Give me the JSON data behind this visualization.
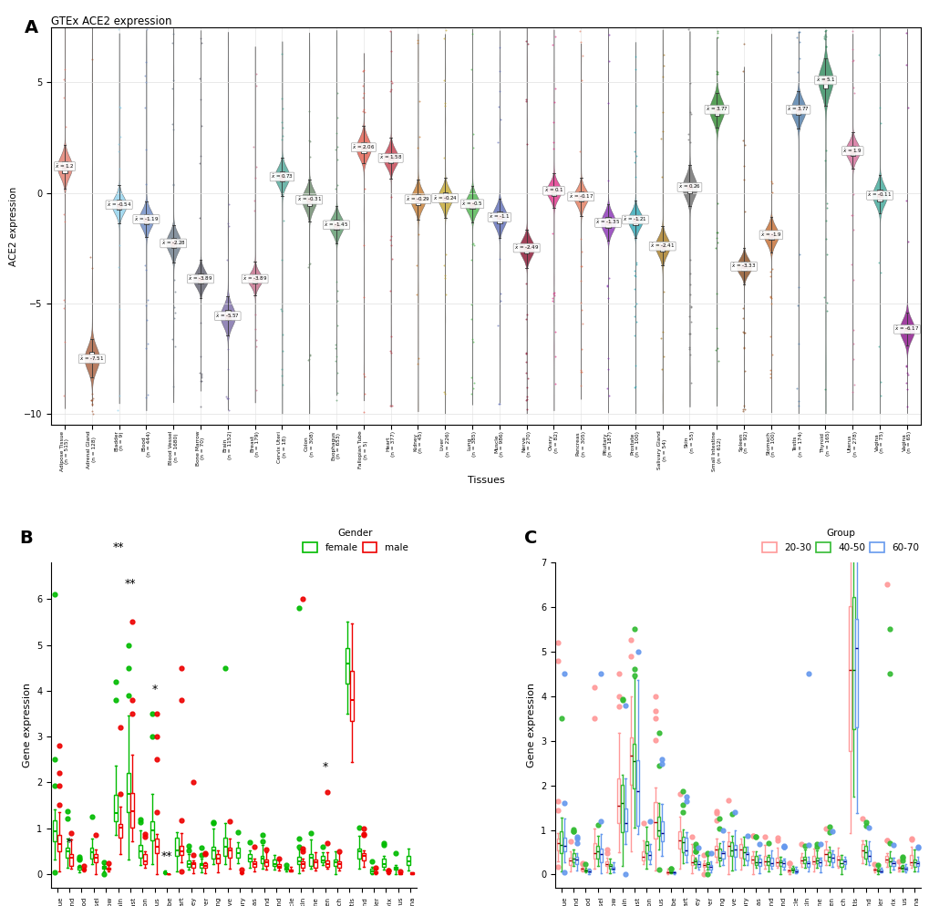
{
  "panel_A": {
    "title": "GTEx ACE2 expression",
    "ylabel": "ACE2 expression",
    "xlabel": "Tissues",
    "tissues": [
      "Adipose Tissue\n(n = 515)",
      "Adrenal Gland\n(n = 128)",
      "Bladder\n(n = 9)",
      "Blood\n(n = 444)",
      "Blood Vessel\n(n = 1680)",
      "Bone Marrow\n(n = 70)",
      "Brain\n(n = 1152)",
      "Breast\n(n = 179)",
      "Cervix Uteri\n(n = 18)",
      "Colon\n(n = 308)",
      "Esophagus\n(n = 653)",
      "Fallopian Tube\n(n = 5)",
      "Heart\n(n = 377)",
      "Kidney\n(n = 45)",
      "Liver\n(n = 226)",
      "Lung\n(n = 385)",
      "Muscle\n(n = 986)",
      "Nerve\n(n = 270)",
      "Ovary\n(n = 82)",
      "Pancreas\n(n = 305)",
      "Pituitary\n(n = 187)",
      "Prostate\n(n = 100)",
      "Salivary Gland\n(n = 54)",
      "Skin\n(n = 55)",
      "Small Intestine\n(n = 612)",
      "Spleen\n(n = 92)",
      "Stomach\n(n = 100)",
      "Testis\n(n = 174)",
      "Thyroid\n(n = 165)",
      "Uterus\n(n = 278)",
      "Vagina\n(n = 75)",
      "Vagina\n(n = 65)"
    ],
    "medians": [
      1.2,
      -7.51,
      -0.54,
      -1.19,
      -2.28,
      -3.89,
      -5.57,
      -3.89,
      0.73,
      -0.31,
      -1.45,
      2.06,
      1.58,
      -0.29,
      -0.24,
      -0.5,
      -1.1,
      -2.49,
      0.1,
      -0.17,
      -1.35,
      -1.21,
      -2.41,
      0.26,
      3.77,
      -3.33,
      -1.9,
      3.77,
      5.1,
      1.9,
      -0.11,
      -6.17
    ],
    "median_labels": [
      "= 1.2",
      "= -7.51",
      "= -0.54",
      "= -1.19",
      "= -2.28",
      "= -3.89",
      "= -5.57",
      "= -3.89",
      "= 0.73",
      "= -0.31",
      "= -1.45",
      "= 2.06",
      "= 1.58",
      "= -0.29",
      "= -0.24",
      "= -0.5",
      "= -1.1",
      "= -2.49",
      "= 0.1",
      "= -0.17",
      "= -1.35",
      "= -1.21",
      "= -2.41",
      "= 0.26",
      "= 3.77",
      "= -3.33",
      "= -1.9",
      "= 3.77",
      "= 5.1",
      "= 1.9",
      "= -0.11",
      "= -6.17"
    ],
    "colors": [
      "#E07060",
      "#A0522D",
      "#87CEEB",
      "#6080C0",
      "#607080",
      "#505060",
      "#7060A0",
      "#C06080",
      "#40A090",
      "#608060",
      "#509060",
      "#E05040",
      "#C03040",
      "#C07020",
      "#C0A020",
      "#40B040",
      "#5060B0",
      "#800020",
      "#E02080",
      "#E07050",
      "#8020B0",
      "#20A0B0",
      "#A07010",
      "#606060",
      "#208020",
      "#804010",
      "#C06020",
      "#4070A0",
      "#208050",
      "#D06090",
      "#30A090",
      "#800080"
    ],
    "ylim": [
      -10.5,
      7.5
    ],
    "yticks": [
      -10,
      -5,
      0,
      5
    ]
  },
  "panel_B": {
    "ylabel": "Gene expression",
    "tissues": [
      "adipose_tissue",
      "adrenal_gland",
      "blood",
      "blood_vessel",
      "bone_marrow",
      "brain",
      "breast",
      "colon",
      "esophagus",
      "fallopian_tube",
      "heart",
      "kidney",
      "liver",
      "lung",
      "nerve",
      "ovary",
      "pancreas",
      "pituitary_gland",
      "salivary_gland",
      "skeletal_muscle",
      "skin",
      "small_intestine",
      "spleen",
      "stomach",
      "testis",
      "thyroid_gland",
      "urinary_bladder",
      "uterine_cervix",
      "uterus",
      "vagina"
    ],
    "female_color": "#00BB00",
    "male_color": "#EE0000",
    "sig_indices": [
      1,
      5,
      6,
      8,
      9,
      22
    ],
    "sig_labels": [
      "*",
      "**",
      "**",
      "*",
      "**",
      "*"
    ],
    "ylim": [
      -0.3,
      6.8
    ]
  },
  "panel_C": {
    "ylabel": "Gene expression",
    "tissues": [
      "adipose_tissue",
      "adrenal_gland",
      "blood",
      "blood_vessel",
      "bone_marrow",
      "brain",
      "breast",
      "colon",
      "esophagus",
      "fallopian_tube",
      "heart",
      "kidney",
      "liver",
      "lung",
      "nerve",
      "ovary",
      "pancreas",
      "pituitary_gland",
      "salivary_gland",
      "skeletal_muscle",
      "skin",
      "small_intestine",
      "spleen",
      "stomach",
      "testis",
      "thyroid_gland",
      "urinary_bladder",
      "uterine_cervix",
      "uterus",
      "vagina"
    ],
    "color_2030": "#FF9999",
    "color_4050": "#33BB33",
    "color_6070": "#6699EE",
    "ylim": [
      -0.3,
      7.0
    ]
  },
  "background_color": "#FFFFFF",
  "grid_color": "#E0E0E0"
}
